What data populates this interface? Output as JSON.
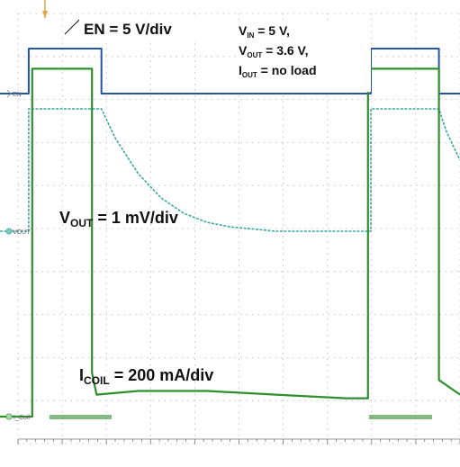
{
  "chart_data": {
    "type": "line",
    "title": "",
    "xlabel": "",
    "ylabel": "",
    "grid": true,
    "channel_markers": [
      "EN",
      "VOUT",
      "I_Coil"
    ],
    "annotations": {
      "en_scale": "EN = 5 V/div",
      "vout_scale_pre": "V",
      "vout_scale_sub": "OUT",
      "vout_scale_post": " = 1 mV/div",
      "icoil_scale_pre": "I",
      "icoil_scale_sub": "COIL",
      "icoil_scale_post": " = 200 mA/div",
      "conditions": [
        {
          "pre": "V",
          "sub": "IN",
          "post": " = 5 V,"
        },
        {
          "pre": "V",
          "sub": "OUT",
          "post": " = 3.6 V,"
        },
        {
          "pre": "I",
          "sub": "OUT",
          "post": " = no load"
        }
      ]
    },
    "colors": {
      "en": "#2456a8",
      "vout": "#3aa8a0",
      "icoil": "#2f8f2f",
      "grid": "#b8b8b8"
    },
    "series": [
      {
        "name": "EN",
        "x": [
          0,
          0.0625,
          0.0625,
          0.2205,
          0.2205,
          0.8062,
          0.8062,
          0.9543,
          0.9543,
          1
        ],
        "y": [
          0,
          0,
          1,
          1,
          0,
          0,
          1,
          1,
          0,
          0
        ]
      },
      {
        "name": "VOUT",
        "x": [
          0,
          0.0625,
          0.0625,
          0.2205,
          0.25,
          0.3,
          0.35,
          0.4,
          0.45,
          0.5,
          0.55,
          0.6,
          0.8062,
          0.8062,
          0.9543,
          0.97,
          1
        ],
        "y": [
          0,
          0,
          0.55,
          0.55,
          0.42,
          0.26,
          0.15,
          0.08,
          0.04,
          0.02,
          0.01,
          0,
          0,
          0.55,
          0.55,
          0.45,
          0.32
        ]
      },
      {
        "name": "I_COIL",
        "x": [
          0,
          0.07,
          0.07,
          0.2,
          0.2,
          0.21,
          0.3,
          0.45,
          0.6,
          0.75,
          0.8,
          0.8,
          0.9543,
          0.9543,
          1
        ],
        "y": [
          0,
          0,
          0.95,
          0.95,
          0.12,
          0.06,
          0.07,
          0.07,
          0.06,
          0.05,
          0.05,
          0.95,
          0.95,
          0.1,
          0.06
        ]
      }
    ]
  }
}
